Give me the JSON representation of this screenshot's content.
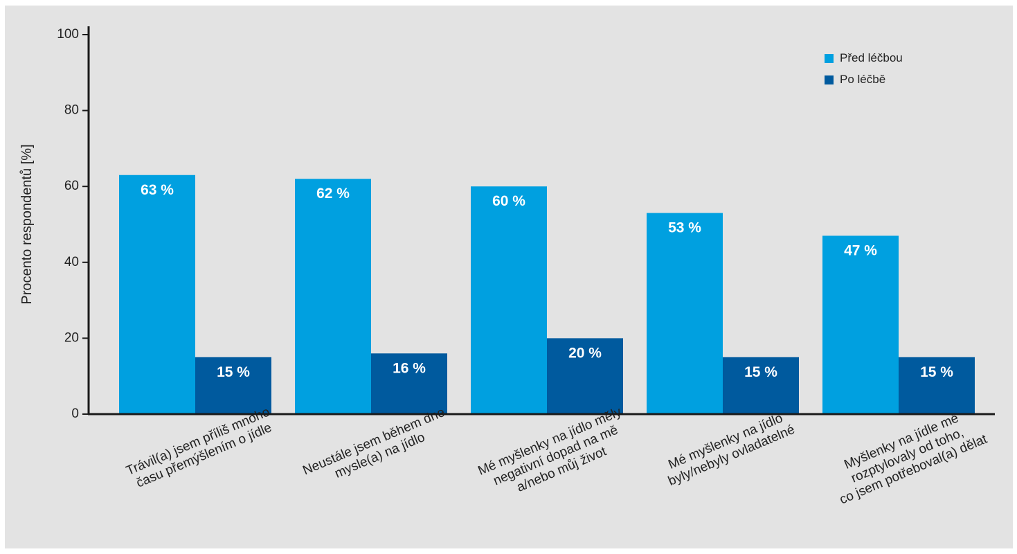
{
  "chart_data": {
    "type": "bar",
    "ylabel": "Procento respondentů [%]",
    "ylim": [
      0,
      100
    ],
    "yticks": [
      0,
      20,
      40,
      60,
      80,
      100
    ],
    "grid": false,
    "legend_position": "top-right",
    "categories": [
      [
        "Trávil(a) jsem příliš mnoho",
        "času  přemýšlením o jídle"
      ],
      [
        "Neustále jsem během dne",
        "mysle(a) na jídlo"
      ],
      [
        "Mé myšlenky na jídlo měly",
        "negativní dopad na mě",
        "a/nebo můj život"
      ],
      [
        "Mé myšlenky na jídlo",
        "byly/nebyly ovladatelné"
      ],
      [
        "Myšlenky na jídle mě",
        "rozptylovaly od toho,",
        "co jsem potřeboval(a) dělat"
      ]
    ],
    "series": [
      {
        "name": "Před léčbou",
        "color": "#00a0e0",
        "values": [
          63,
          62,
          60,
          53,
          47
        ],
        "labels": [
          "63 %",
          "62 %",
          "60 %",
          "53 %",
          "47 %"
        ]
      },
      {
        "name": "Po léčbě",
        "color": "#005a9e",
        "values": [
          15,
          16,
          20,
          15,
          15
        ],
        "labels": [
          "15 %",
          "16 %",
          "20 %",
          "15 %",
          "15 %"
        ]
      }
    ]
  }
}
